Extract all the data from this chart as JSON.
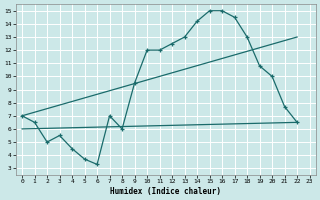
{
  "bg_color": "#cce8e8",
  "line_color": "#1a6b6b",
  "grid_color": "#ffffff",
  "xlabel": "Humidex (Indice chaleur)",
  "xlim": [
    -0.5,
    23.5
  ],
  "ylim": [
    2.5,
    15.5
  ],
  "xticks": [
    0,
    1,
    2,
    3,
    4,
    5,
    6,
    7,
    8,
    9,
    10,
    11,
    12,
    13,
    14,
    15,
    16,
    17,
    18,
    19,
    20,
    21,
    22,
    23
  ],
  "yticks": [
    3,
    4,
    5,
    6,
    7,
    8,
    9,
    10,
    11,
    12,
    13,
    14,
    15
  ],
  "line1_x": [
    0,
    1,
    2,
    3,
    4,
    5,
    6,
    7,
    8,
    9,
    10,
    11,
    12,
    13,
    14,
    15,
    16,
    17,
    18,
    19,
    20,
    21,
    22
  ],
  "line1_y": [
    7.0,
    6.5,
    5.0,
    5.5,
    4.5,
    3.7,
    3.3,
    7.0,
    6.0,
    9.5,
    12.0,
    12.0,
    12.5,
    13.0,
    14.2,
    15.0,
    15.0,
    14.5,
    13.0,
    10.8,
    10.0,
    7.7,
    6.5
  ],
  "line2_x": [
    0,
    22
  ],
  "line2_y": [
    7.0,
    13.0
  ],
  "line3_x": [
    0,
    22
  ],
  "line3_y": [
    6.0,
    6.5
  ]
}
